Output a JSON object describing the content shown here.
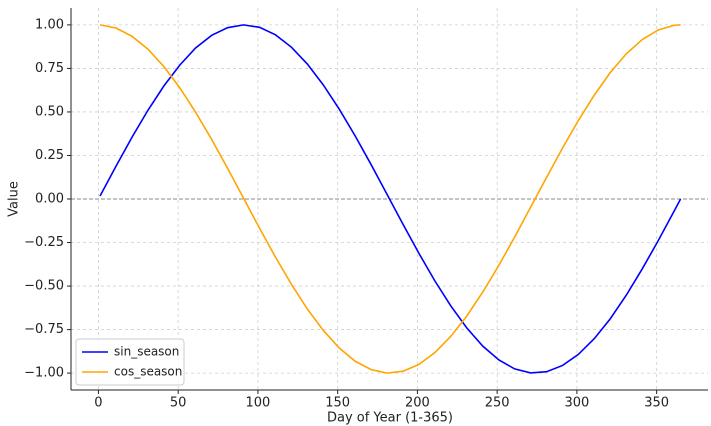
{
  "chart_data": {
    "type": "line",
    "x_label": "Day of Year (1-365)",
    "y_label": "Value",
    "x": [
      1,
      11,
      21,
      31,
      41,
      51,
      61,
      71,
      81,
      91,
      101,
      111,
      121,
      131,
      141,
      151,
      161,
      171,
      181,
      191,
      201,
      211,
      221,
      231,
      241,
      251,
      261,
      271,
      281,
      291,
      301,
      311,
      321,
      331,
      341,
      351,
      361,
      365
    ],
    "series": [
      {
        "name": "sin_season",
        "color": "#0000ff",
        "values": [
          0.017,
          0.188,
          0.354,
          0.509,
          0.649,
          0.769,
          0.868,
          0.94,
          0.984,
          1.0,
          0.986,
          0.943,
          0.872,
          0.775,
          0.655,
          0.516,
          0.362,
          0.197,
          0.026,
          -0.146,
          -0.313,
          -0.471,
          -0.615,
          -0.741,
          -0.845,
          -0.924,
          -0.976,
          -0.999,
          -0.992,
          -0.956,
          -0.892,
          -0.801,
          -0.687,
          -0.552,
          -0.401,
          -0.239,
          -0.069,
          0.0
        ]
      },
      {
        "name": "cos_season",
        "color": "#ffa500",
        "values": [
          1.0,
          0.982,
          0.935,
          0.861,
          0.761,
          0.639,
          0.497,
          0.342,
          0.176,
          0.004,
          -0.167,
          -0.334,
          -0.49,
          -0.632,
          -0.755,
          -0.856,
          -0.932,
          -0.98,
          -1.0,
          -0.989,
          -0.95,
          -0.882,
          -0.788,
          -0.672,
          -0.534,
          -0.382,
          -0.218,
          -0.047,
          0.124,
          0.293,
          0.452,
          0.598,
          0.727,
          0.834,
          0.916,
          0.971,
          0.998,
          1.0
        ]
      }
    ],
    "xlim": [
      -17.2,
      382.2
    ],
    "ylim": [
      -1.097,
      1.097
    ],
    "xticks": [
      0,
      50,
      100,
      150,
      200,
      250,
      300,
      350
    ],
    "yticks": [
      {
        "value": -1,
        "label": "−1.00"
      },
      {
        "value": -0.75,
        "label": "−0.75"
      },
      {
        "value": -0.5,
        "label": "−0.50"
      },
      {
        "value": -0.25,
        "label": "−0.25"
      },
      {
        "value": 0,
        "label": "0.00"
      },
      {
        "value": 0.25,
        "label": "0.25"
      },
      {
        "value": 0.5,
        "label": "0.50"
      },
      {
        "value": 0.75,
        "label": "0.75"
      },
      {
        "value": 1,
        "label": "1.00"
      }
    ],
    "hlines": [
      0
    ],
    "grid": true,
    "legend": "lower-left"
  }
}
